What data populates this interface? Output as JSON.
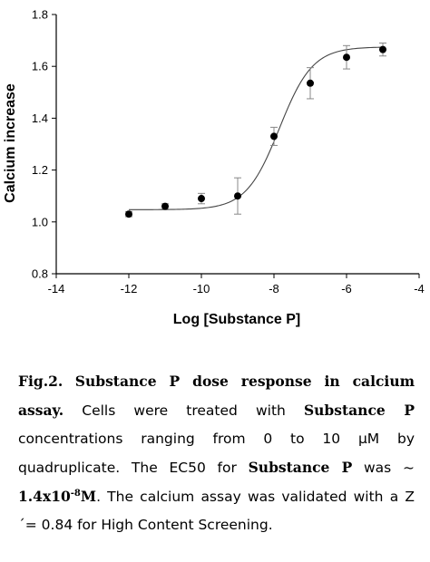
{
  "chart_data": {
    "type": "scatter",
    "xlabel": "Log [Substance P]",
    "ylabel": "Calcium increase",
    "xlim": [
      -14,
      -4
    ],
    "ylim": [
      0.8,
      1.8
    ],
    "xticks": [
      "-14",
      "-12",
      "-10",
      "-8",
      "-6",
      "-4"
    ],
    "yticks": [
      "0.8",
      "1.0",
      "1.2",
      "1.4",
      "1.6",
      "1.8"
    ],
    "grid": false,
    "legend": "none",
    "fit": "sigmoidal dose-response curve",
    "points": [
      {
        "x": -12,
        "y": 1.03,
        "err": 0.01
      },
      {
        "x": -11,
        "y": 1.06,
        "err": 0.01
      },
      {
        "x": -10,
        "y": 1.09,
        "err": 0.02
      },
      {
        "x": -9,
        "y": 1.1,
        "err": 0.07
      },
      {
        "x": -8,
        "y": 1.33,
        "err": 0.035
      },
      {
        "x": -7,
        "y": 1.535,
        "err": 0.06
      },
      {
        "x": -6,
        "y": 1.635,
        "err": 0.045
      },
      {
        "x": -5,
        "y": 1.665,
        "err": 0.025
      }
    ],
    "curve": {
      "bottom": 1.047,
      "top": 1.675,
      "logEC50": -7.85,
      "hill": 0.95
    }
  },
  "caption": {
    "fig_label": "Fig.2.",
    "title": "Substance P dose response in calcium assay.",
    "text1": "Cells were treated with",
    "bold1": "Substance P",
    "text2": "concentrations ranging from 0 to 10 μM by quadruplicate. The EC50 for",
    "bold2": "Substance P",
    "text3": "was ~",
    "ec50_base": "1.4x10",
    "ec50_exp": "-8",
    "ec50_unit": "M",
    "text4": ". The calcium assay was validated with a Z´= 0.84 for High Content Screening."
  }
}
